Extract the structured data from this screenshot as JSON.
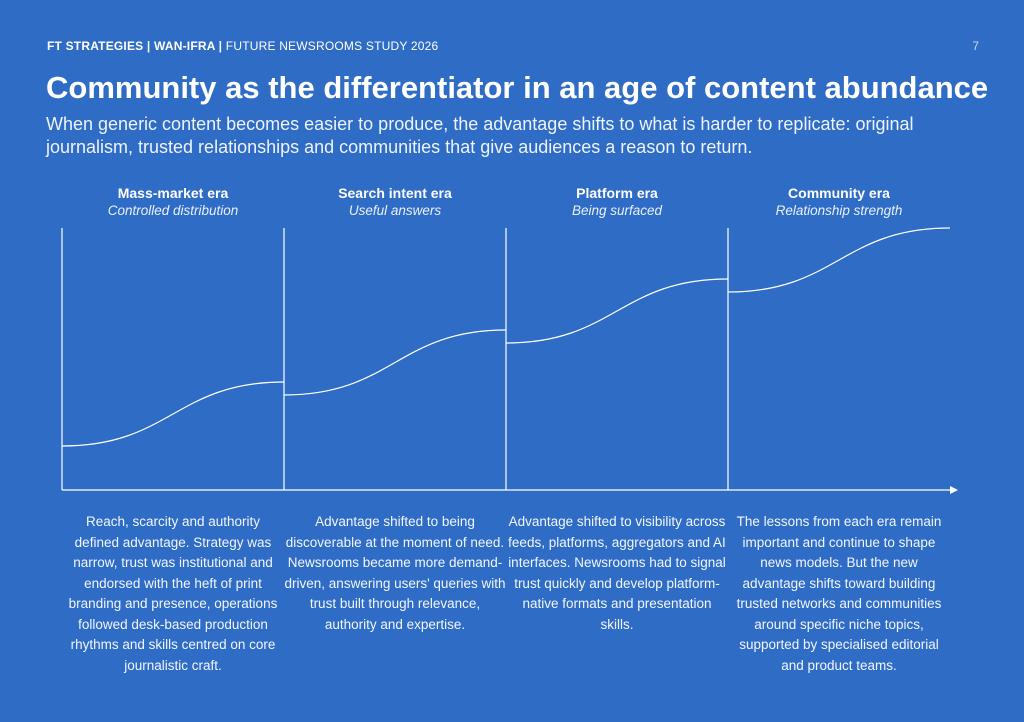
{
  "header": {
    "brand": "FT STRATEGIES | WAN-IFRA |",
    "study": "FUTURE NEWSROOMS STUDY 2026",
    "page_number": "7"
  },
  "title": "Community as the differentiator in an age of content abundance",
  "subtitle": "When generic content becomes easier to produce, the advantage shifts to what is harder to replicate: original journalism, trusted relationships and communities that give audiences a reason to return.",
  "eras": [
    {
      "name": "Mass-market era",
      "tagline": "Controlled distribution",
      "description": "Reach, scarcity and authority defined advantage. Strategy was narrow, trust was institutional and endorsed with the heft of print branding and presence, operations followed desk-based production rhythms and skills centred on core journalistic craft."
    },
    {
      "name": "Search intent era",
      "tagline": "Useful answers",
      "description": "Advantage shifted to being discoverable at the moment of need. Newsrooms became more demand-driven, answering users' queries with trust built through relevance, authority and expertise."
    },
    {
      "name": "Platform era",
      "tagline": "Being surfaced",
      "description": "Advantage shifted to visibility across feeds, platforms, aggregators and AI interfaces. Newsrooms had to signal trust quickly and develop platform-native formats and presentation skills."
    },
    {
      "name": "Community era",
      "tagline": "Relationship strength",
      "description": "The lessons from each era remain important and continue to shape news models. But the new advantage shifts toward building trusted networks and communities around specific niche topics, supported by specialised editorial and product teams."
    }
  ],
  "colors": {
    "background": "#2f6cc6",
    "foreground": "#ffffff"
  }
}
